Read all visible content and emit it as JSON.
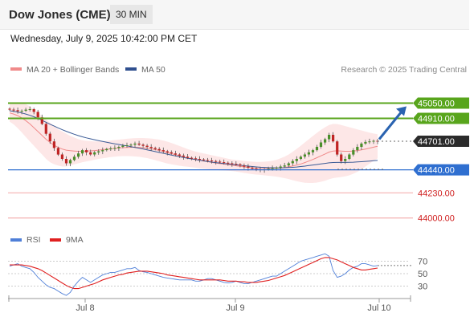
{
  "header": {
    "symbol": "Dow Jones (CME)",
    "timeframe": "30 MIN"
  },
  "timestamp": "Wednesday, July 9, 2025 10:42:00 PM CET",
  "legend": {
    "items": [
      {
        "label": "MA 20 + Bollinger Bands",
        "color": "#f08a8a"
      },
      {
        "label": "MA 50",
        "color": "#2f4f8f"
      }
    ],
    "credit": "Research © 2025 Trading Central"
  },
  "rsi_legend": [
    {
      "label": "RSI",
      "color": "#4f7fd8"
    },
    {
      "label": "9MA",
      "color": "#e02020"
    }
  ],
  "colors": {
    "resistance": "#58a51c",
    "support": "#2f6fd0",
    "target": "#f4b0b0",
    "arrow": "#2a63b0",
    "last": "#2b2b2b",
    "up": "#4a8f2a",
    "down": "#c02424"
  },
  "chart_data": [
    {
      "type": "candlestick",
      "title": "",
      "ylim": [
        43880,
        45200
      ],
      "x_ticks": [
        "Jul 8",
        "Jul 9",
        "Jul 10"
      ],
      "levels": [
        {
          "value": 45050,
          "label": "45050.00",
          "kind": "resistance"
        },
        {
          "value": 44910,
          "label": "44910.00",
          "kind": "resistance"
        },
        {
          "value": 44701,
          "label": "44701.00",
          "kind": "last"
        },
        {
          "value": 44440,
          "label": "44440.00",
          "kind": "support"
        },
        {
          "value": 44230,
          "label": "44230.00",
          "kind": "target"
        },
        {
          "value": 44000,
          "label": "44000.00",
          "kind": "target"
        }
      ],
      "forecast": {
        "from": 44720,
        "to": 45020
      },
      "close": [
        44990,
        44985,
        44975,
        44980,
        44990,
        44995,
        44970,
        44920,
        44860,
        44770,
        44700,
        44640,
        44580,
        44540,
        44500,
        44530,
        44560,
        44590,
        44620,
        44600,
        44580,
        44600,
        44610,
        44620,
        44630,
        44635,
        44640,
        44650,
        44660,
        44665,
        44670,
        44680,
        44670,
        44660,
        44650,
        44640,
        44630,
        44620,
        44610,
        44600,
        44590,
        44580,
        44570,
        44560,
        44550,
        44545,
        44540,
        44535,
        44530,
        44525,
        44520,
        44515,
        44510,
        44505,
        44500,
        44495,
        44490,
        44480,
        44470,
        44460,
        44450,
        44445,
        44440,
        44445,
        44450,
        44455,
        44460,
        44470,
        44480,
        44500,
        44520,
        44540,
        44560,
        44580,
        44600,
        44620,
        44650,
        44690,
        44720,
        44760,
        44700,
        44580,
        44520,
        44540,
        44580,
        44620,
        44650,
        44680,
        44695,
        44700,
        44705,
        44701
      ],
      "ma20": [
        44960,
        44950,
        44935,
        44915,
        44890,
        44860,
        44825,
        44790,
        44755,
        44720,
        44690,
        44665,
        44645,
        44630,
        44620,
        44615,
        44612,
        44610,
        44610,
        44611,
        44613,
        44616,
        44620,
        44624,
        44628,
        44632,
        44636,
        44640,
        44643,
        44645,
        44646,
        44646,
        44645,
        44642,
        44638,
        44632,
        44625,
        44617,
        44608,
        44598,
        44588,
        44578,
        44568,
        44558,
        44549,
        44541,
        44533,
        44526,
        44520,
        44514,
        44508,
        44502,
        44497,
        44492,
        44487,
        44482,
        44477,
        44472,
        44467,
        44462,
        44458,
        44455,
        44453,
        44452,
        44452,
        44453,
        44455,
        44458,
        44462,
        44468,
        44475,
        44484,
        44494,
        44506,
        44520,
        44535,
        44551,
        44568,
        44585,
        44602,
        44612,
        44614,
        44612,
        44610,
        44610,
        44612,
        44616,
        44622,
        44630,
        44638,
        44647,
        44655
      ],
      "bb_upper": [
        45040,
        45045,
        45050,
        45048,
        45040,
        45020,
        44990,
        44960,
        44930,
        44900,
        44870,
        44840,
        44810,
        44790,
        44770,
        44750,
        44735,
        44720,
        44710,
        44705,
        44702,
        44700,
        44700,
        44702,
        44705,
        44708,
        44712,
        44716,
        44720,
        44724,
        44727,
        44730,
        44731,
        44731,
        44729,
        44726,
        44722,
        44716,
        44708,
        44698,
        44686,
        44672,
        44658,
        44644,
        44630,
        44618,
        44607,
        44598,
        44590,
        44582,
        44574,
        44566,
        44558,
        44550,
        44542,
        44535,
        44530,
        44526,
        44522,
        44518,
        44515,
        44513,
        44512,
        44514,
        44518,
        44524,
        44532,
        44545,
        44560,
        44580,
        44605,
        44632,
        44660,
        44690,
        44720,
        44750,
        44778,
        44805,
        44830,
        44850,
        44860,
        44858,
        44850,
        44840,
        44830,
        44820,
        44810,
        44800,
        44790,
        44780,
        44772,
        44765
      ],
      "bb_lower": [
        44880,
        44855,
        44820,
        44782,
        44740,
        44700,
        44660,
        44620,
        44580,
        44540,
        44510,
        44490,
        44480,
        44470,
        44470,
        44480,
        44490,
        44500,
        44510,
        44517,
        44524,
        44532,
        44540,
        44546,
        44551,
        44556,
        44560,
        44564,
        44566,
        44566,
        44565,
        44562,
        44559,
        44553,
        44547,
        44538,
        44528,
        44518,
        44508,
        44498,
        44490,
        44484,
        44478,
        44472,
        44468,
        44464,
        44459,
        44454,
        44450,
        44446,
        44442,
        44438,
        44436,
        44434,
        44432,
        44429,
        44424,
        44418,
        44412,
        44406,
        44401,
        44397,
        44394,
        44390,
        44386,
        44382,
        44378,
        44371,
        44364,
        44356,
        44345,
        44336,
        44328,
        44322,
        44320,
        44320,
        44324,
        44331,
        44340,
        44354,
        44364,
        44370,
        44374,
        44380,
        44390,
        44404,
        44422,
        44444,
        44470,
        44496,
        44522,
        44545
      ],
      "ma50": [
        44980,
        44975,
        44968,
        44960,
        44950,
        44938,
        44925,
        44910,
        44893,
        44875,
        44857,
        44840,
        44823,
        44807,
        44792,
        44778,
        44765,
        44753,
        44742,
        44732,
        44723,
        44715,
        44707,
        44699,
        44692,
        44685,
        44678,
        44672,
        44665,
        44659,
        44652,
        44645,
        44638,
        44631,
        44623,
        44615,
        44607,
        44599,
        44591,
        44583,
        44575,
        44567,
        44560,
        44553,
        44546,
        44540,
        44534,
        44528,
        44522,
        44516,
        44511,
        44506,
        44502,
        44498,
        44494,
        44490,
        44486,
        44482,
        44478,
        44474,
        44470,
        44467,
        44464,
        44462,
        44460,
        44459,
        44458,
        44458,
        44459,
        44461,
        44463,
        44466,
        44470,
        44474,
        44479,
        44484,
        44489,
        44494,
        44499,
        44504,
        44507,
        44508,
        44508,
        44508,
        44509,
        44510,
        44512,
        44514,
        44517,
        44520,
        44523,
        44526
      ]
    },
    {
      "type": "line",
      "title": "",
      "ylim": [
        10,
        90
      ],
      "y_ticks": [
        70,
        50,
        30
      ],
      "series": [
        {
          "name": "RSI",
          "color": "#4f7fd8",
          "values": [
            62,
            64,
            66,
            62,
            60,
            58,
            52,
            44,
            38,
            32,
            28,
            26,
            22,
            18,
            15,
            20,
            30,
            38,
            44,
            40,
            36,
            40,
            44,
            48,
            50,
            52,
            52,
            54,
            56,
            58,
            58,
            60,
            55,
            53,
            52,
            50,
            48,
            46,
            44,
            43,
            42,
            41,
            40,
            40,
            40,
            40,
            38,
            38,
            40,
            42,
            42,
            40,
            38,
            36,
            35,
            36,
            38,
            36,
            34,
            34,
            36,
            38,
            40,
            42,
            44,
            46,
            46,
            50,
            54,
            58,
            62,
            66,
            70,
            72,
            74,
            76,
            78,
            80,
            82,
            78,
            55,
            44,
            46,
            50,
            56,
            60,
            62,
            66,
            66,
            64,
            62,
            63
          ]
        },
        {
          "name": "9MA",
          "color": "#e02020",
          "values": [
            64,
            64,
            64,
            64,
            63,
            62,
            60,
            58,
            55,
            51,
            47,
            43,
            39,
            35,
            31,
            28,
            26,
            26,
            28,
            30,
            32,
            34,
            37,
            40,
            42,
            44,
            46,
            48,
            49,
            51,
            52,
            53,
            54,
            54,
            54,
            53,
            52,
            51,
            50,
            48,
            47,
            46,
            45,
            44,
            43,
            42,
            41,
            40,
            40,
            40,
            40,
            40,
            40,
            39,
            38,
            38,
            38,
            37,
            37,
            36,
            36,
            36,
            37,
            38,
            39,
            41,
            43,
            45,
            47,
            50,
            53,
            56,
            59,
            62,
            65,
            68,
            71,
            74,
            76,
            76,
            74,
            72,
            69,
            66,
            63,
            60,
            58,
            56,
            56,
            57,
            58,
            59
          ]
        }
      ]
    }
  ]
}
